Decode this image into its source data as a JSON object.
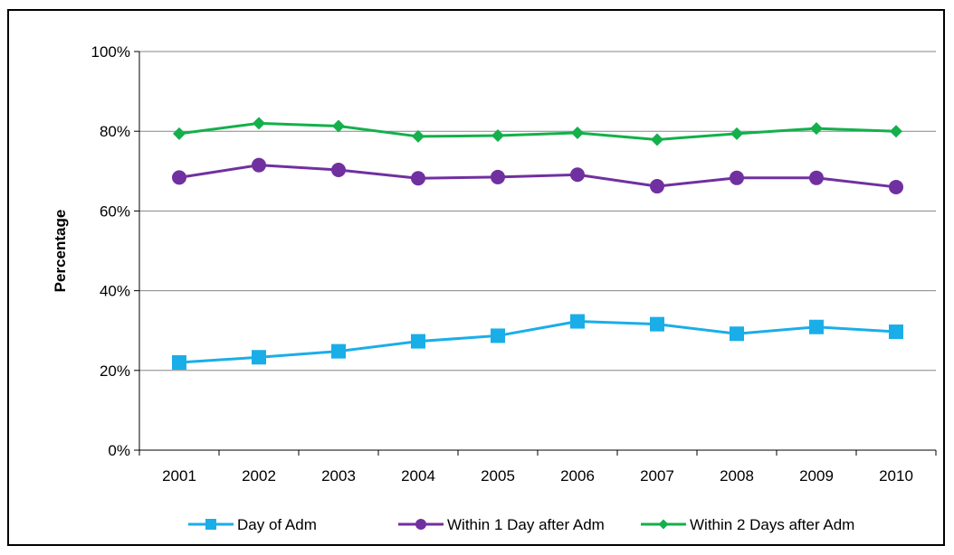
{
  "chart_data": {
    "type": "line",
    "title": "",
    "xlabel": "",
    "ylabel": "Percentage",
    "categories": [
      "2001",
      "2002",
      "2003",
      "2004",
      "2005",
      "2006",
      "2007",
      "2008",
      "2009",
      "2010"
    ],
    "ylim": [
      0,
      100
    ],
    "y_ticks": [
      "0%",
      "20%",
      "40%",
      "60%",
      "80%",
      "100%"
    ],
    "grid": true,
    "legend_position": "bottom",
    "series": [
      {
        "name": "Day of Adm",
        "color": "#1aaee8",
        "marker": "square",
        "values": [
          22.0,
          23.3,
          24.8,
          27.3,
          28.7,
          32.3,
          31.6,
          29.2,
          30.9,
          29.7
        ]
      },
      {
        "name": "Within 1 Day after Adm",
        "color": "#7030a0",
        "marker": "circle",
        "values": [
          68.4,
          71.5,
          70.3,
          68.2,
          68.5,
          69.1,
          66.2,
          68.3,
          68.3,
          66.0
        ]
      },
      {
        "name": "Within 2 Days after Adm",
        "color": "#13b04b",
        "marker": "diamond",
        "values": [
          79.4,
          82.0,
          81.3,
          78.7,
          78.9,
          79.6,
          77.9,
          79.4,
          80.7,
          80.0
        ]
      }
    ]
  }
}
